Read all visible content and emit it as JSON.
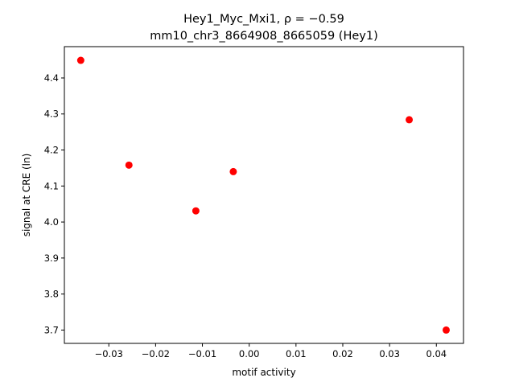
{
  "chart_data": {
    "type": "scatter",
    "title_line1": "Hey1_Myc_Mxi1, ρ = −0.59",
    "title_line2": "mm10_chr3_8664908_8665059 (Hey1)",
    "xlabel": "motif activity",
    "ylabel": "signal at CRE (ln)",
    "xlim": [
      -0.0395,
      0.0458
    ],
    "ylim": [
      3.663,
      4.487
    ],
    "xticks": [
      -0.03,
      -0.02,
      -0.01,
      0.0,
      0.01,
      0.02,
      0.03,
      0.04
    ],
    "xtick_labels": [
      "−0.03",
      "−0.02",
      "−0.01",
      "0.00",
      "0.01",
      "0.02",
      "0.03",
      "0.04"
    ],
    "yticks": [
      3.7,
      3.8,
      3.9,
      4.0,
      4.1,
      4.2,
      4.3,
      4.4
    ],
    "ytick_labels": [
      "3.7",
      "3.8",
      "3.9",
      "4.0",
      "4.1",
      "4.2",
      "4.3",
      "4.4"
    ],
    "grid": false,
    "marker_color": "#ff0000",
    "points": [
      {
        "x": -0.036,
        "y": 4.449
      },
      {
        "x": -0.0257,
        "y": 4.158
      },
      {
        "x": -0.0114,
        "y": 4.031
      },
      {
        "x": -0.0034,
        "y": 4.14
      },
      {
        "x": 0.0342,
        "y": 4.284
      },
      {
        "x": 0.0421,
        "y": 3.7
      }
    ]
  }
}
